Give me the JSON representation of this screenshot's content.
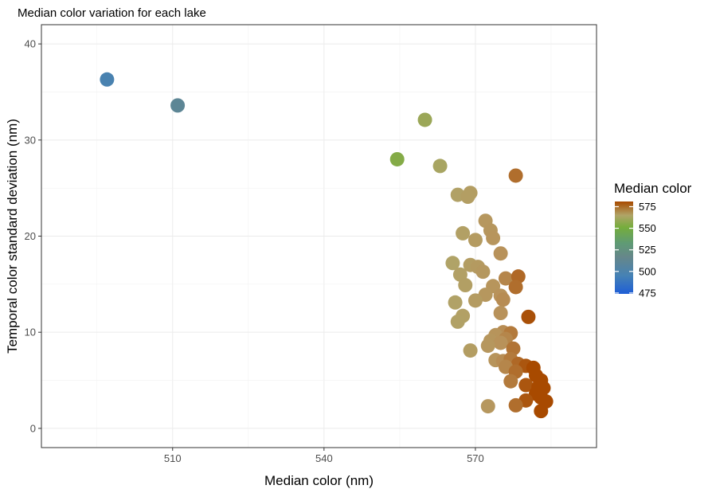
{
  "chart_data": {
    "type": "scatter",
    "title": "Median color variation for each lake",
    "xlabel": "Median color (nm)",
    "ylabel": "Temporal color standard deviation (nm)",
    "xlim": [
      484,
      594
    ],
    "ylim": [
      -2,
      42
    ],
    "x_ticks": [
      510,
      540,
      570
    ],
    "y_ticks": [
      0,
      10,
      20,
      30,
      40
    ],
    "grid": true,
    "legend": {
      "title": "Median color",
      "placement": "right",
      "type": "colorbar",
      "range": [
        474,
        581
      ],
      "breaks": [
        575,
        550,
        525,
        500,
        475
      ]
    },
    "points": [
      {
        "x": 497,
        "y": 36.3
      },
      {
        "x": 511,
        "y": 33.6
      },
      {
        "x": 554.5,
        "y": 28.0
      },
      {
        "x": 560,
        "y": 32.1
      },
      {
        "x": 563,
        "y": 27.3
      },
      {
        "x": 566.5,
        "y": 24.3
      },
      {
        "x": 569,
        "y": 24.5
      },
      {
        "x": 568.5,
        "y": 24.1
      },
      {
        "x": 578,
        "y": 26.3
      },
      {
        "x": 572,
        "y": 21.6
      },
      {
        "x": 573,
        "y": 20.6
      },
      {
        "x": 573.5,
        "y": 19.8
      },
      {
        "x": 567.5,
        "y": 20.3
      },
      {
        "x": 570,
        "y": 19.6
      },
      {
        "x": 575,
        "y": 18.2
      },
      {
        "x": 565.5,
        "y": 17.2
      },
      {
        "x": 569,
        "y": 17.0
      },
      {
        "x": 570.5,
        "y": 16.8
      },
      {
        "x": 571.5,
        "y": 16.3
      },
      {
        "x": 567,
        "y": 16.0
      },
      {
        "x": 568,
        "y": 14.9
      },
      {
        "x": 573.5,
        "y": 14.8
      },
      {
        "x": 576,
        "y": 15.6
      },
      {
        "x": 578.5,
        "y": 15.8
      },
      {
        "x": 578,
        "y": 14.7
      },
      {
        "x": 572,
        "y": 13.9
      },
      {
        "x": 575,
        "y": 13.8
      },
      {
        "x": 575.5,
        "y": 13.4
      },
      {
        "x": 570,
        "y": 13.3
      },
      {
        "x": 566,
        "y": 13.1
      },
      {
        "x": 575,
        "y": 12.0
      },
      {
        "x": 580.5,
        "y": 11.6
      },
      {
        "x": 567.5,
        "y": 11.7
      },
      {
        "x": 566.5,
        "y": 11.1
      },
      {
        "x": 575.5,
        "y": 10.0
      },
      {
        "x": 577,
        "y": 9.9
      },
      {
        "x": 574,
        "y": 9.7
      },
      {
        "x": 576,
        "y": 9.3
      },
      {
        "x": 573,
        "y": 9.1
      },
      {
        "x": 575,
        "y": 8.9
      },
      {
        "x": 572.5,
        "y": 8.6
      },
      {
        "x": 577.5,
        "y": 8.3
      },
      {
        "x": 569,
        "y": 8.1
      },
      {
        "x": 574,
        "y": 7.1
      },
      {
        "x": 575.5,
        "y": 7.0
      },
      {
        "x": 577,
        "y": 7.2
      },
      {
        "x": 578.5,
        "y": 6.7
      },
      {
        "x": 576,
        "y": 6.4
      },
      {
        "x": 580,
        "y": 6.5
      },
      {
        "x": 581.5,
        "y": 6.3
      },
      {
        "x": 578,
        "y": 5.9
      },
      {
        "x": 582,
        "y": 5.5
      },
      {
        "x": 583,
        "y": 5.0
      },
      {
        "x": 577,
        "y": 4.9
      },
      {
        "x": 580,
        "y": 4.5
      },
      {
        "x": 582.5,
        "y": 4.3
      },
      {
        "x": 583.5,
        "y": 4.2
      },
      {
        "x": 582,
        "y": 3.6
      },
      {
        "x": 583,
        "y": 3.2
      },
      {
        "x": 580,
        "y": 2.9
      },
      {
        "x": 584,
        "y": 2.8
      },
      {
        "x": 578,
        "y": 2.4
      },
      {
        "x": 572.5,
        "y": 2.3
      },
      {
        "x": 583,
        "y": 1.8
      }
    ]
  }
}
